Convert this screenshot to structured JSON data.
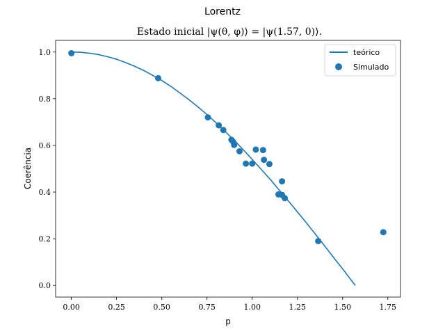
{
  "chart_data": {
    "type": "scatter",
    "suptitle": "Lorentz",
    "title": "Estado inicial |ψ(θ, φ)⟩ = |ψ(1.57, 0)⟩.",
    "xlabel": "p",
    "ylabel": "Coerência",
    "xlim": [
      -0.087,
      1.82
    ],
    "ylim": [
      -0.05,
      1.05
    ],
    "xticks": [
      "0.00",
      "0.25",
      "0.50",
      "0.75",
      "1.00",
      "1.25",
      "1.50",
      "1.75"
    ],
    "yticks": [
      "0.0",
      "0.2",
      "0.4",
      "0.6",
      "0.8",
      "1.0"
    ],
    "grid": false,
    "legend_position": "upper right",
    "series": [
      {
        "name": "teórico",
        "kind": "line",
        "color": "#1f77b4",
        "x": [
          0.0,
          0.05,
          0.1,
          0.15,
          0.2,
          0.25,
          0.3,
          0.35,
          0.4,
          0.45,
          0.5,
          0.55,
          0.6,
          0.65,
          0.7,
          0.75,
          0.8,
          0.85,
          0.9,
          0.95,
          1.0,
          1.05,
          1.1,
          1.15,
          1.2,
          1.25,
          1.3,
          1.35,
          1.4,
          1.45,
          1.5,
          1.57
        ],
        "y": [
          1.0,
          0.999,
          0.995,
          0.989,
          0.98,
          0.969,
          0.955,
          0.939,
          0.921,
          0.9,
          0.878,
          0.853,
          0.825,
          0.796,
          0.765,
          0.732,
          0.697,
          0.66,
          0.622,
          0.582,
          0.54,
          0.497,
          0.454,
          0.408,
          0.362,
          0.315,
          0.268,
          0.219,
          0.17,
          0.12,
          0.071,
          0.0
        ]
      },
      {
        "name": "Simulado",
        "kind": "scatter",
        "color": "#1f77b4",
        "x": [
          0.0,
          0.48,
          0.755,
          0.815,
          0.84,
          0.885,
          0.895,
          0.9,
          0.93,
          0.965,
          1.0,
          1.02,
          1.06,
          1.065,
          1.095,
          1.145,
          1.165,
          1.165,
          1.18,
          1.365,
          1.725
        ],
        "y": [
          0.995,
          0.888,
          0.72,
          0.686,
          0.666,
          0.624,
          0.615,
          0.602,
          0.575,
          0.522,
          0.522,
          0.582,
          0.58,
          0.538,
          0.52,
          0.39,
          0.446,
          0.388,
          0.374,
          0.19,
          0.228
        ]
      }
    ]
  }
}
